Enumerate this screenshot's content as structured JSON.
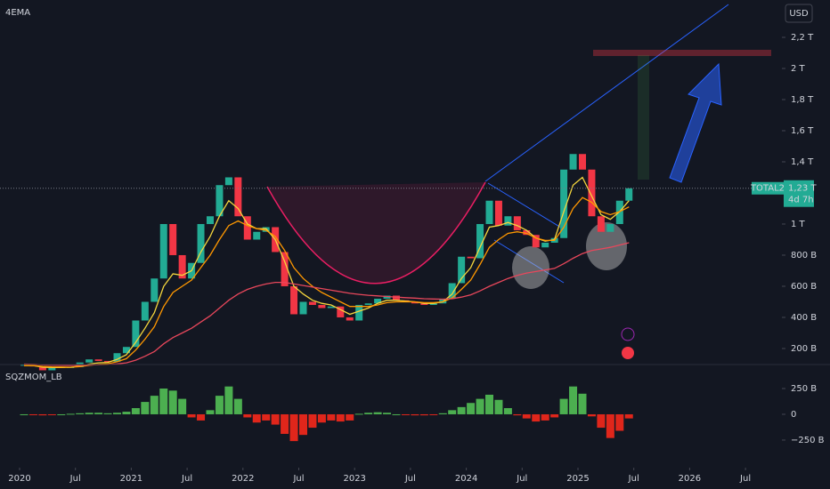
{
  "chart_data": [
    {
      "type": "candlestick",
      "title": "4EMA",
      "currency": "USD",
      "symbol": "TOTAL2",
      "countdown": "4d 7h",
      "last_price": {
        "value": 1230,
        "label": "1,23 T"
      },
      "x": [
        "2020-01",
        "2020-02",
        "2020-03",
        "2020-04",
        "2020-05",
        "2020-06",
        "2020-07",
        "2020-08",
        "2020-09",
        "2020-10",
        "2020-11",
        "2020-12",
        "2021-01",
        "2021-02",
        "2021-03",
        "2021-04",
        "2021-05",
        "2021-06",
        "2021-07",
        "2021-08",
        "2021-09",
        "2021-10",
        "2021-11",
        "2021-12",
        "2022-01",
        "2022-02",
        "2022-03",
        "2022-04",
        "2022-05",
        "2022-06",
        "2022-07",
        "2022-08",
        "2022-09",
        "2022-10",
        "2022-11",
        "2022-12",
        "2023-01",
        "2023-02",
        "2023-03",
        "2023-04",
        "2023-05",
        "2023-06",
        "2023-07",
        "2023-08",
        "2023-09",
        "2023-10",
        "2023-11",
        "2023-12",
        "2024-01",
        "2024-02",
        "2024-03",
        "2024-04",
        "2024-05",
        "2024-06",
        "2024-07",
        "2024-08",
        "2024-09",
        "2024-10",
        "2024-11",
        "2024-12",
        "2025-01",
        "2025-02",
        "2025-03",
        "2025-04",
        "2025-05",
        "2025-06"
      ],
      "values": [
        95,
        85,
        60,
        75,
        80,
        80,
        110,
        130,
        120,
        115,
        170,
        210,
        380,
        500,
        650,
        1000,
        800,
        650,
        750,
        1000,
        1050,
        1250,
        1300,
        1050,
        900,
        950,
        980,
        820,
        600,
        420,
        500,
        480,
        460,
        470,
        400,
        380,
        480,
        490,
        520,
        540,
        510,
        500,
        490,
        480,
        490,
        520,
        620,
        790,
        780,
        1000,
        1150,
        990,
        1050,
        960,
        930,
        850,
        880,
        910,
        1350,
        1450,
        1350,
        1050,
        950,
        1000,
        1150,
        1230
      ],
      "color_up": "#22ab94",
      "color_down": "#f23645",
      "lines": [
        {
          "color": "#f5d63d",
          "values": [
            90,
            90,
            80,
            78,
            78,
            79,
            88,
            100,
            108,
            111,
            130,
            160,
            240,
            330,
            430,
            600,
            680,
            670,
            700,
            820,
            920,
            1050,
            1150,
            1100,
            1000,
            970,
            970,
            900,
            760,
            600,
            550,
            510,
            490,
            480,
            450,
            420,
            440,
            460,
            490,
            510,
            510,
            505,
            500,
            490,
            490,
            500,
            550,
            650,
            720,
            850,
            980,
            990,
            1010,
            990,
            960,
            910,
            890,
            900,
            1080,
            1250,
            1300,
            1180,
            1060,
            1030,
            1080,
            1150
          ]
        },
        {
          "color": "#ff9800",
          "values": [
            90,
            90,
            85,
            82,
            81,
            80,
            84,
            92,
            98,
            102,
            115,
            135,
            190,
            260,
            340,
            470,
            560,
            600,
            640,
            720,
            800,
            900,
            990,
            1020,
            990,
            970,
            960,
            920,
            830,
            720,
            650,
            600,
            560,
            530,
            500,
            470,
            470,
            470,
            480,
            495,
            500,
            500,
            500,
            495,
            495,
            500,
            525,
            580,
            640,
            740,
            850,
            900,
            940,
            950,
            940,
            910,
            895,
            895,
            980,
            1100,
            1170,
            1140,
            1080,
            1060,
            1080,
            1110
          ]
        },
        {
          "color": "#e8475b",
          "values": [
            100,
            98,
            95,
            93,
            92,
            91,
            92,
            94,
            96,
            97,
            101,
            108,
            125,
            150,
            180,
            230,
            270,
            300,
            330,
            370,
            410,
            460,
            510,
            550,
            580,
            600,
            615,
            625,
            625,
            615,
            605,
            595,
            585,
            575,
            565,
            555,
            548,
            542,
            538,
            534,
            530,
            527,
            524,
            520,
            518,
            517,
            520,
            530,
            545,
            570,
            600,
            625,
            650,
            670,
            685,
            695,
            705,
            715,
            745,
            780,
            810,
            830,
            840,
            850,
            865,
            880
          ]
        }
      ],
      "ylim": [
        97,
        2440
      ],
      "yticks": [
        {
          "value": 200,
          "label": "200 B"
        },
        {
          "value": 400,
          "label": "400 B"
        },
        {
          "value": 600,
          "label": "600 B"
        },
        {
          "value": 800,
          "label": "800 B"
        },
        {
          "value": 1000,
          "label": "1 T"
        },
        {
          "value": 1400,
          "label": "1,4 T"
        },
        {
          "value": 1600,
          "label": "1,6 T"
        },
        {
          "value": 1800,
          "label": "1,8 T"
        },
        {
          "value": 2000,
          "label": "2 T"
        },
        {
          "value": 2200,
          "label": "2,2 T"
        }
      ],
      "grid": false
    },
    {
      "type": "bar",
      "title": "SQZMOM_LB",
      "x": [
        "2020-01",
        "2020-02",
        "2020-03",
        "2020-04",
        "2020-05",
        "2020-06",
        "2020-07",
        "2020-08",
        "2020-09",
        "2020-10",
        "2020-11",
        "2020-12",
        "2021-01",
        "2021-02",
        "2021-03",
        "2021-04",
        "2021-05",
        "2021-06",
        "2021-07",
        "2021-08",
        "2021-09",
        "2021-10",
        "2021-11",
        "2021-12",
        "2022-01",
        "2022-02",
        "2022-03",
        "2022-04",
        "2022-05",
        "2022-06",
        "2022-07",
        "2022-08",
        "2022-09",
        "2022-10",
        "2022-11",
        "2022-12",
        "2023-01",
        "2023-02",
        "2023-03",
        "2023-04",
        "2023-05",
        "2023-06",
        "2023-07",
        "2023-08",
        "2023-09",
        "2023-10",
        "2023-11",
        "2023-12",
        "2024-01",
        "2024-02",
        "2024-03",
        "2024-04",
        "2024-05",
        "2024-06",
        "2024-07",
        "2024-08",
        "2024-09",
        "2024-10",
        "2024-11",
        "2024-12",
        "2025-01",
        "2025-02",
        "2025-03",
        "2025-04",
        "2025-05",
        "2025-06"
      ],
      "values": [
        0,
        -5,
        -10,
        -5,
        0,
        5,
        10,
        15,
        15,
        10,
        15,
        25,
        60,
        120,
        180,
        250,
        230,
        150,
        -30,
        -60,
        40,
        180,
        270,
        150,
        -30,
        -80,
        -60,
        -100,
        -190,
        -260,
        -200,
        -130,
        -80,
        -60,
        -70,
        -60,
        5,
        15,
        20,
        15,
        0,
        -5,
        -10,
        -10,
        -5,
        10,
        40,
        70,
        110,
        150,
        190,
        140,
        60,
        -10,
        -40,
        -70,
        -60,
        -30,
        150,
        270,
        200,
        -20,
        -130,
        -230,
        -160,
        -40
      ],
      "color_positive": "#4caf50",
      "color_negative": "#e0261b",
      "ylim": [
        -466,
        483
      ],
      "yticks": [
        {
          "value": -250,
          "label": "−250 B"
        },
        0,
        {
          "value": 250,
          "label": "250 B"
        }
      ],
      "xticks": [
        {
          "value": "2020-01",
          "label": "2020"
        },
        {
          "value": "2020-07",
          "label": "Jul"
        },
        {
          "value": "2021-01",
          "label": "2021"
        },
        {
          "value": "2021-07",
          "label": "Jul"
        },
        {
          "value": "2022-01",
          "label": "2022"
        },
        {
          "value": "2022-07",
          "label": "Jul"
        },
        {
          "value": "2023-01",
          "label": "2023"
        },
        {
          "value": "2023-07",
          "label": "Jul"
        },
        {
          "value": "2024-01",
          "label": "2024"
        },
        {
          "value": "2024-07",
          "label": "Jul"
        },
        {
          "value": "2025-01",
          "label": "2025"
        },
        {
          "value": "2025-07",
          "label": "Jul"
        },
        {
          "value": "2026-01",
          "label": "2026"
        },
        {
          "value": "2026-07",
          "label": "Jul"
        }
      ]
    }
  ]
}
